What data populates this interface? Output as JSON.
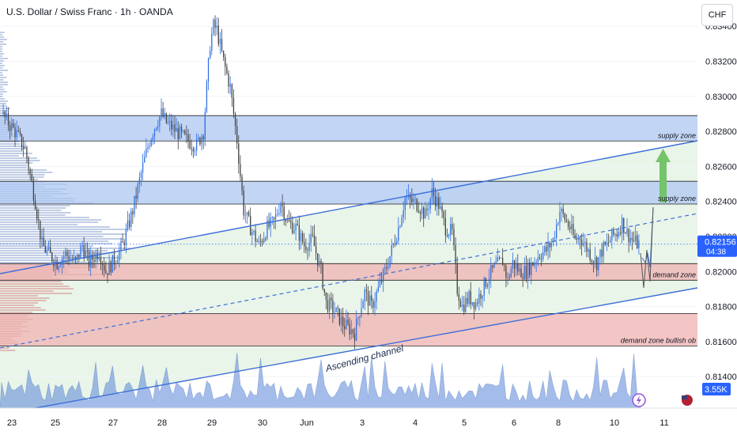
{
  "header": {
    "title": "U.S. Dollar / Swiss Franc · 1h · OANDA",
    "currency_unit": "CHF"
  },
  "colors": {
    "supply_fill": "#aec7f2",
    "demand_fill": "#efb1b1",
    "channel_fill": "#e4f3e4",
    "channel_line": "#3d6fd8",
    "candle_up": "#2f6fe3",
    "candle_down": "#404040",
    "volume": "#5b87d8",
    "arrow": "#74c46a",
    "price_badge": "#2962ff"
  },
  "chart_data": {
    "type": "candlestick",
    "symbol": "U.S. Dollar / Swiss Franc",
    "timeframe": "1h",
    "source": "OANDA",
    "x_ticks": [
      "23",
      "25",
      "27",
      "28",
      "29",
      "30",
      "Jun",
      "3",
      "4",
      "5",
      "6",
      "8",
      "10",
      "11"
    ],
    "y_ticks": [
      0.834,
      0.832,
      0.83,
      0.828,
      0.826,
      0.824,
      0.822,
      0.82,
      0.818,
      0.816,
      0.814
    ],
    "y_tick_labels": [
      "0.83400",
      "0.83200",
      "0.83000",
      "0.82800",
      "0.82600",
      "0.82400",
      "0.82200",
      "0.82000",
      "0.81800",
      "0.81600",
      "0.81400"
    ],
    "ylim": [
      0.8122,
      0.8355
    ],
    "last_price": "0.82156",
    "countdown": "04:38",
    "last_volume": "3.55K",
    "close_path": [
      [
        0,
        0.829
      ],
      [
        8,
        0.828
      ],
      [
        14,
        0.827
      ],
      [
        20,
        0.824
      ],
      [
        24,
        0.8215
      ],
      [
        28,
        0.821
      ],
      [
        33,
        0.8205
      ],
      [
        38,
        0.821
      ],
      [
        44,
        0.8205
      ],
      [
        48,
        0.8215
      ],
      [
        52,
        0.8205
      ],
      [
        58,
        0.8212
      ],
      [
        62,
        0.82
      ],
      [
        66,
        0.8205
      ],
      [
        72,
        0.8215
      ],
      [
        78,
        0.8235
      ],
      [
        84,
        0.826
      ],
      [
        88,
        0.8275
      ],
      [
        92,
        0.8285
      ],
      [
        95,
        0.829
      ],
      [
        98,
        0.8285
      ],
      [
        104,
        0.828
      ],
      [
        110,
        0.8275
      ],
      [
        116,
        0.8272
      ],
      [
        120,
        0.828
      ],
      [
        124,
        0.833
      ],
      [
        126,
        0.834
      ],
      [
        128,
        0.8338
      ],
      [
        132,
        0.832
      ],
      [
        136,
        0.8305
      ],
      [
        140,
        0.8275
      ],
      [
        144,
        0.8235
      ],
      [
        148,
        0.8225
      ],
      [
        153,
        0.8215
      ],
      [
        158,
        0.8225
      ],
      [
        162,
        0.8228
      ],
      [
        166,
        0.824
      ],
      [
        170,
        0.8228
      ],
      [
        175,
        0.8225
      ],
      [
        180,
        0.8215
      ],
      [
        185,
        0.8218
      ],
      [
        190,
        0.82
      ],
      [
        193,
        0.8182
      ],
      [
        196,
        0.818
      ],
      [
        200,
        0.8175
      ],
      [
        203,
        0.817
      ],
      [
        206,
        0.8168
      ],
      [
        210,
        0.8165
      ],
      [
        213,
        0.8178
      ],
      [
        216,
        0.8188
      ],
      [
        220,
        0.818
      ],
      [
        224,
        0.819
      ],
      [
        228,
        0.82
      ],
      [
        232,
        0.8212
      ],
      [
        236,
        0.8225
      ],
      [
        240,
        0.8242
      ],
      [
        244,
        0.824
      ],
      [
        248,
        0.8238
      ],
      [
        252,
        0.8232
      ],
      [
        256,
        0.8245
      ],
      [
        260,
        0.8238
      ],
      [
        264,
        0.8225
      ],
      [
        268,
        0.8222
      ],
      [
        271,
        0.819
      ],
      [
        274,
        0.818
      ],
      [
        278,
        0.8185
      ],
      [
        282,
        0.8182
      ],
      [
        286,
        0.819
      ],
      [
        290,
        0.8198
      ],
      [
        294,
        0.8203
      ],
      [
        298,
        0.8206
      ],
      [
        301,
        0.8195
      ],
      [
        304,
        0.8205
      ],
      [
        308,
        0.82
      ],
      [
        312,
        0.82
      ],
      [
        316,
        0.8205
      ],
      [
        320,
        0.821
      ],
      [
        324,
        0.8212
      ],
      [
        328,
        0.8218
      ],
      [
        332,
        0.8235
      ],
      [
        335,
        0.823
      ],
      [
        338,
        0.8225
      ],
      [
        341,
        0.8218
      ],
      [
        344,
        0.822
      ],
      [
        347,
        0.8215
      ],
      [
        350,
        0.821
      ],
      [
        354,
        0.8205
      ],
      [
        357,
        0.8212
      ],
      [
        360,
        0.8215
      ],
      [
        363,
        0.822
      ],
      [
        366,
        0.8222
      ],
      [
        369,
        0.8228
      ],
      [
        372,
        0.8222
      ],
      [
        375,
        0.8218
      ],
      [
        378,
        0.8216
      ]
    ],
    "zones": [
      {
        "label": "supply zone",
        "top": 0.8289,
        "bottom": 0.82745
      },
      {
        "label": "supply zone",
        "top": 0.82515,
        "bottom": 0.82385
      },
      {
        "label": "demand zone",
        "top": 0.82045,
        "bottom": 0.8195
      },
      {
        "label": "demand zone bullish ob",
        "top": 0.8176,
        "bottom": 0.81575
      }
    ],
    "annotations": [
      "Ascending channel"
    ]
  }
}
